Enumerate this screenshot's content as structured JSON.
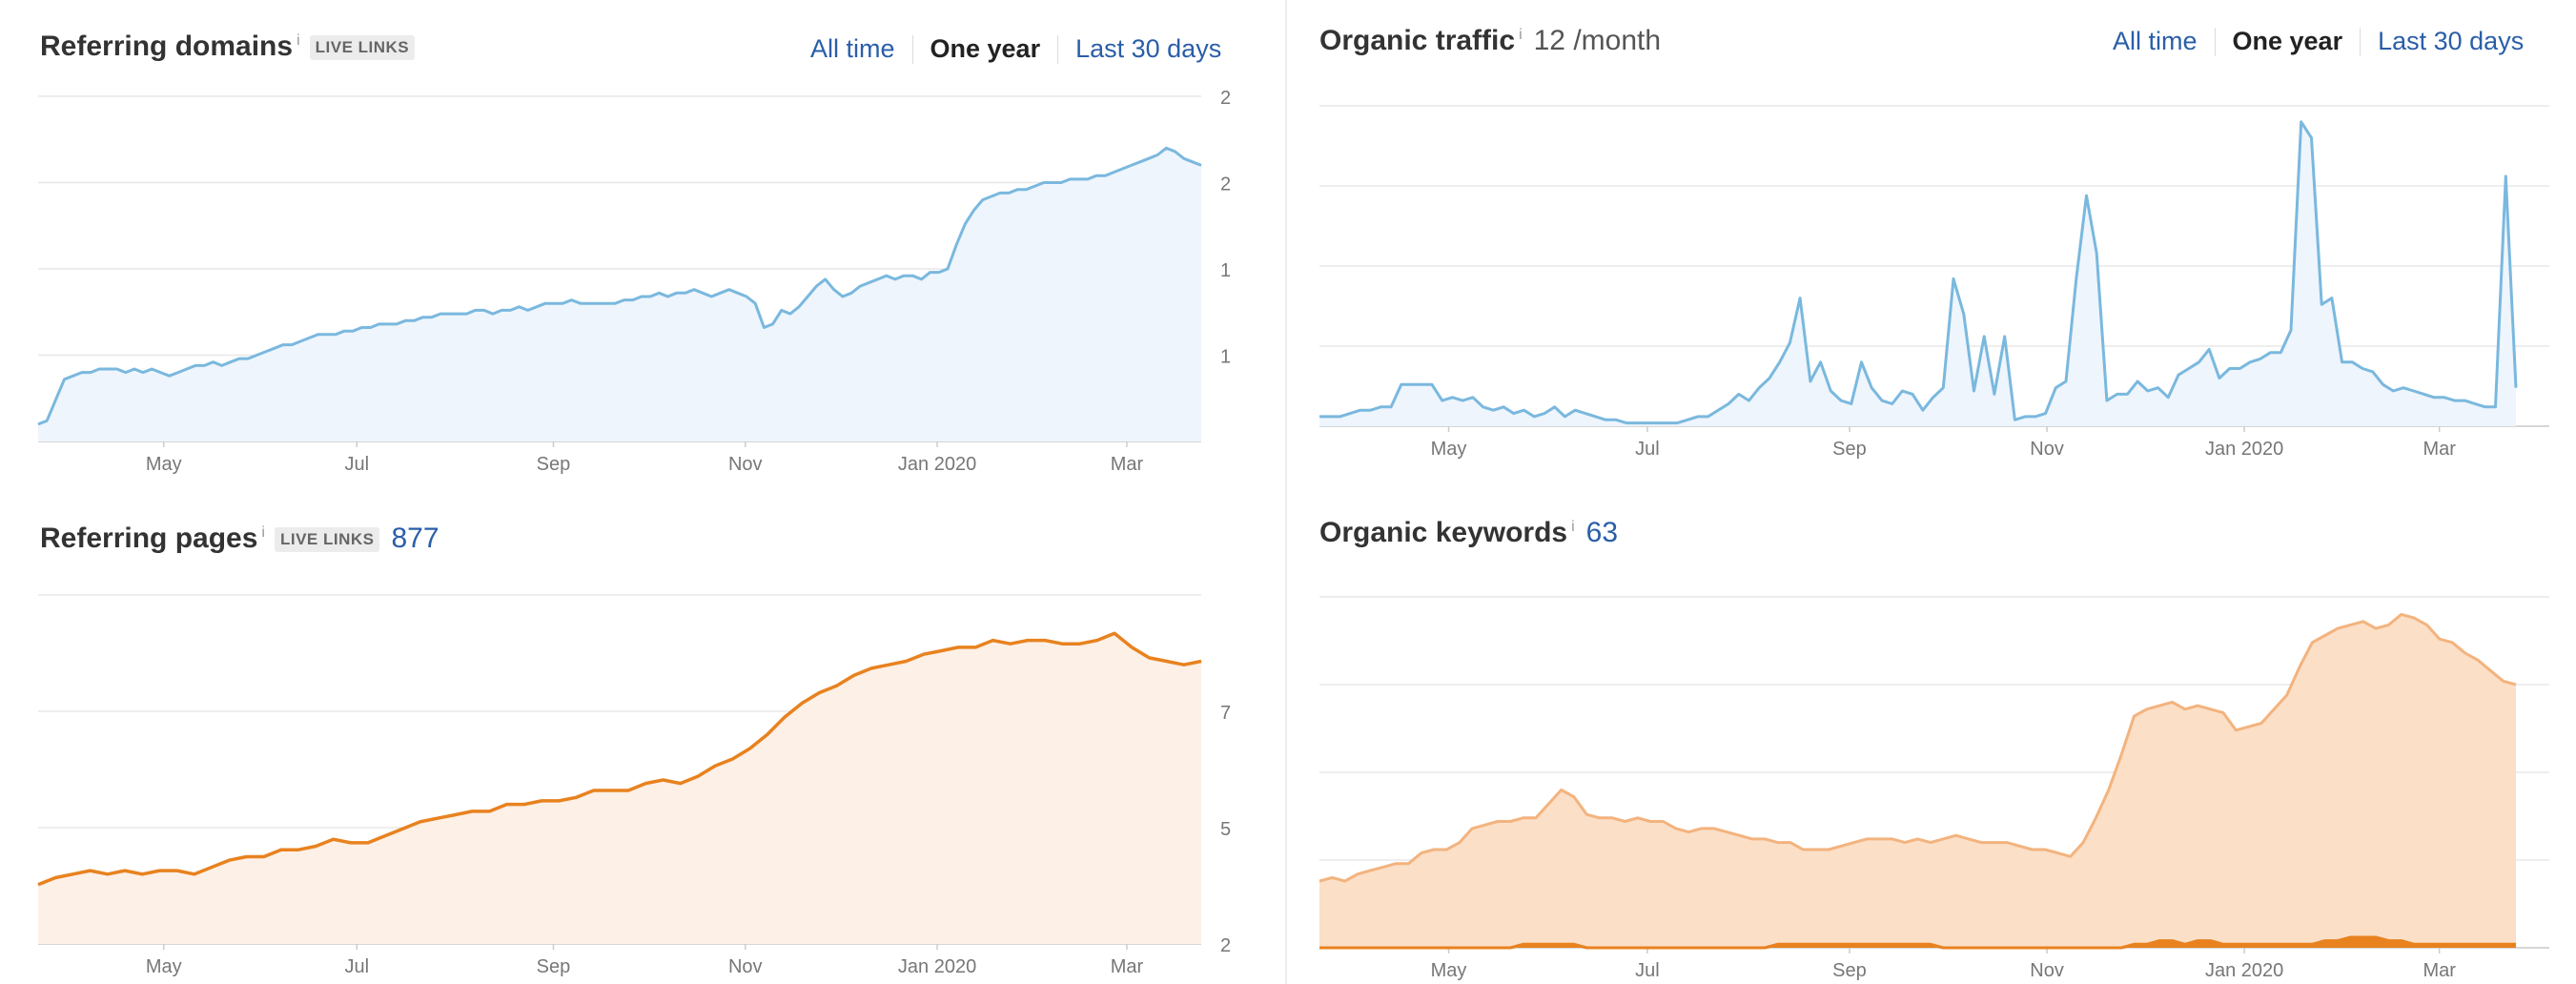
{
  "panels": {
    "referring_domains": {
      "title": "Referring domains",
      "info": "i",
      "badge": "LIVE LINKS",
      "tabs": [
        "All time",
        "One year",
        "Last 30 days"
      ]
    },
    "organic_traffic": {
      "title": "Organic traffic",
      "info": "i",
      "value": "12 /month",
      "tabs": [
        "All time",
        "One year",
        "Last 30 days"
      ]
    },
    "referring_pages": {
      "title": "Referring pages",
      "info": "i",
      "badge": "LIVE LINKS",
      "value": "877"
    },
    "organic_keywords": {
      "title": "Organic keywords",
      "info": "i",
      "value": "63"
    }
  },
  "colors": {
    "blue_line": "#7ab8de",
    "blue_fill": "#eef5fc",
    "orange_line": "#e8821f",
    "orange_fill": "#fdf0e7",
    "kw_line": "#f3b37e",
    "kw_fill": "#fbdfc7",
    "kw_low": "#e8821f",
    "grid": "#e8e8e8",
    "link": "#2a5ea8"
  },
  "chart_data": [
    {
      "id": "referring_domains",
      "type": "area",
      "x_ticks": [
        "May",
        "Jul",
        "Sep",
        "Nov",
        "Jan 2020",
        "Mar"
      ],
      "y_ticks": [
        "2",
        "2",
        "1",
        "1"
      ],
      "grid": true,
      "ylim": [
        0,
        100
      ],
      "series": [
        {
          "values": [
            5,
            6,
            12,
            18,
            19,
            20,
            20,
            21,
            21,
            21,
            20,
            21,
            20,
            21,
            20,
            19,
            20,
            21,
            22,
            22,
            23,
            22,
            23,
            24,
            24,
            25,
            26,
            27,
            28,
            28,
            29,
            30,
            31,
            31,
            31,
            32,
            32,
            33,
            33,
            34,
            34,
            34,
            35,
            35,
            36,
            36,
            37,
            37,
            37,
            37,
            38,
            38,
            37,
            38,
            38,
            39,
            38,
            39,
            40,
            40,
            40,
            41,
            40,
            40,
            40,
            40,
            40,
            41,
            41,
            42,
            42,
            43,
            42,
            43,
            43,
            44,
            43,
            42,
            43,
            44,
            43,
            42,
            40,
            33,
            34,
            38,
            37,
            39,
            42,
            45,
            47,
            44,
            42,
            43,
            45,
            46,
            47,
            48,
            47,
            48,
            48,
            47,
            49,
            49,
            50,
            57,
            63,
            67,
            70,
            71,
            72,
            72,
            73,
            73,
            74,
            75,
            75,
            75,
            76,
            76,
            76,
            77,
            77,
            78,
            79,
            80,
            81,
            82,
            83,
            85,
            84,
            82,
            81,
            80
          ]
        }
      ]
    },
    {
      "id": "organic_traffic",
      "type": "area",
      "x_ticks": [
        "May",
        "Jul",
        "Sep",
        "Nov",
        "Jan 2020",
        "Mar"
      ],
      "grid": true,
      "ylim": [
        0,
        100
      ],
      "series": [
        {
          "values": [
            3,
            3,
            3,
            4,
            5,
            5,
            6,
            6,
            13,
            13,
            13,
            13,
            8,
            9,
            8,
            9,
            6,
            5,
            6,
            4,
            5,
            3,
            4,
            6,
            3,
            5,
            4,
            3,
            2,
            2,
            1,
            1,
            1,
            1,
            1,
            1,
            2,
            3,
            3,
            5,
            7,
            10,
            8,
            12,
            15,
            20,
            26,
            40,
            14,
            20,
            11,
            8,
            7,
            20,
            12,
            8,
            7,
            11,
            10,
            5,
            9,
            12,
            46,
            35,
            11,
            28,
            10,
            28,
            2,
            3,
            3,
            4,
            12,
            14,
            46,
            72,
            54,
            8,
            10,
            10,
            14,
            11,
            12,
            9,
            16,
            18,
            20,
            24,
            15,
            18,
            18,
            20,
            21,
            23,
            23,
            30,
            95,
            90,
            38,
            40,
            20,
            20,
            18,
            17,
            13,
            11,
            12,
            11,
            10,
            9,
            9,
            8,
            8,
            7,
            6,
            6,
            78,
            12
          ]
        }
      ]
    },
    {
      "id": "referring_pages",
      "type": "area",
      "x_ticks": [
        "May",
        "Jul",
        "Sep",
        "Nov",
        "Jan 2020",
        "Mar"
      ],
      "y_ticks": [
        "7",
        "5",
        "2"
      ],
      "grid": true,
      "ylim": [
        0,
        100
      ],
      "series": [
        {
          "values": [
            17,
            19,
            20,
            21,
            20,
            21,
            20,
            21,
            21,
            20,
            22,
            24,
            25,
            25,
            27,
            27,
            28,
            30,
            29,
            29,
            31,
            33,
            35,
            36,
            37,
            38,
            38,
            40,
            40,
            41,
            41,
            42,
            44,
            44,
            44,
            46,
            47,
            46,
            48,
            51,
            53,
            56,
            60,
            65,
            69,
            72,
            74,
            77,
            79,
            80,
            81,
            83,
            84,
            85,
            85,
            87,
            86,
            87,
            87,
            86,
            86,
            87,
            89,
            85,
            82,
            81,
            80,
            81
          ]
        }
      ]
    },
    {
      "id": "organic_keywords",
      "type": "area",
      "x_ticks": [
        "May",
        "Jul",
        "Sep",
        "Nov",
        "Jan 2020",
        "Mar"
      ],
      "grid": true,
      "ylim": [
        0,
        100
      ],
      "series": [
        {
          "values": [
            19,
            20,
            19,
            21,
            22,
            23,
            24,
            24,
            27,
            28,
            28,
            30,
            34,
            35,
            36,
            36,
            37,
            37,
            41,
            45,
            43,
            38,
            37,
            37,
            36,
            37,
            36,
            36,
            34,
            33,
            34,
            34,
            33,
            32,
            31,
            31,
            30,
            30,
            28,
            28,
            28,
            29,
            30,
            31,
            31,
            31,
            30,
            31,
            30,
            31,
            32,
            31,
            30,
            30,
            30,
            29,
            28,
            28,
            27,
            26,
            30,
            37,
            45,
            55,
            66,
            68,
            69,
            70,
            68,
            69,
            68,
            67,
            62,
            63,
            64,
            68,
            72,
            80,
            87,
            89,
            91,
            92,
            93,
            91,
            92,
            95,
            94,
            92,
            88,
            87,
            84,
            82,
            79,
            76,
            75
          ]
        },
        {
          "values": [
            0,
            0,
            0,
            0,
            0,
            0,
            0,
            0,
            0,
            0,
            0,
            0,
            0,
            0,
            0,
            0,
            1,
            1,
            1,
            1,
            1,
            0,
            0,
            0,
            0,
            0,
            0,
            0,
            0,
            0,
            0,
            0,
            0,
            0,
            0,
            0,
            1,
            1,
            1,
            1,
            1,
            1,
            1,
            1,
            1,
            1,
            1,
            1,
            1,
            0,
            0,
            0,
            0,
            0,
            0,
            0,
            0,
            0,
            0,
            0,
            0,
            0,
            0,
            0,
            1,
            1,
            2,
            2,
            1,
            2,
            2,
            1,
            1,
            1,
            1,
            1,
            1,
            1,
            1,
            2,
            2,
            3,
            3,
            3,
            2,
            2,
            1,
            1,
            1,
            1,
            1,
            1,
            1,
            1,
            1
          ]
        }
      ]
    }
  ]
}
